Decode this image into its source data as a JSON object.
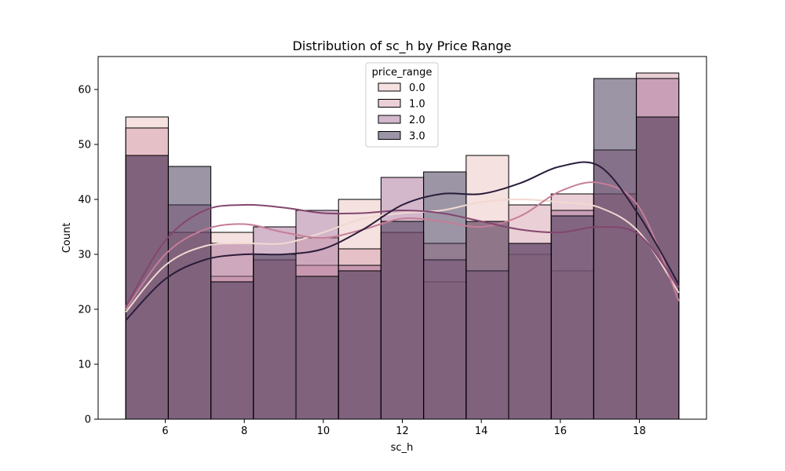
{
  "chart_data": {
    "type": "histogram",
    "title": "Distribution of sc_h by Price Range",
    "xlabel": "sc_h",
    "ylabel": "Count",
    "xlim": [
      4.3,
      19.7
    ],
    "ylim": [
      0,
      66
    ],
    "xticks": [
      6,
      8,
      10,
      12,
      14,
      16,
      18
    ],
    "yticks": [
      0,
      10,
      20,
      30,
      40,
      50,
      60
    ],
    "bin_edges": [
      5.0,
      6.0769,
      7.1538,
      8.2308,
      9.3077,
      10.3846,
      11.4615,
      12.5385,
      13.6154,
      14.6923,
      15.7692,
      16.8462,
      17.9231,
      19.0
    ],
    "legend": {
      "title": "price_range",
      "location": "upper center"
    },
    "series": [
      {
        "name": "0.0",
        "color": "#ebc4c1",
        "line_color": "#f1d9d1",
        "counts": [
          55,
          34,
          34,
          29,
          33,
          40,
          34,
          25,
          48,
          30,
          27,
          41,
          55
        ],
        "kde_x": [
          5,
          6,
          7,
          8,
          9,
          10,
          11,
          12,
          13,
          14,
          15,
          16,
          17,
          18,
          19
        ],
        "kde_y": [
          19.5,
          28,
          31.5,
          32,
          32,
          34,
          36.5,
          37.5,
          38,
          39.5,
          40,
          39.5,
          38.5,
          34,
          23
        ]
      },
      {
        "name": "1.0",
        "color": "#d8a0ad",
        "line_color": "#c67d98",
        "counts": [
          53,
          34,
          26,
          29,
          28,
          31,
          34,
          32,
          36,
          39,
          41,
          41,
          63
        ],
        "kde_x": [
          5,
          6,
          7,
          8,
          9,
          10,
          11,
          12,
          13,
          14,
          15,
          16,
          17,
          18,
          19
        ],
        "kde_y": [
          20,
          30,
          34.5,
          35.5,
          34,
          33,
          34.5,
          36.5,
          36,
          35,
          37,
          41.5,
          43,
          38.5,
          21.5
        ]
      },
      {
        "name": "2.0",
        "color": "#a86f98",
        "line_color": "#83466f",
        "counts": [
          48,
          39,
          32,
          35,
          38,
          28,
          44,
          29,
          27,
          32,
          38,
          49,
          62
        ],
        "kde_x": [
          5,
          6,
          7,
          8,
          9,
          10,
          11,
          12,
          13,
          14,
          15,
          16,
          17,
          18,
          19
        ],
        "kde_y": [
          20.5,
          32.5,
          38,
          39,
          38.5,
          37.5,
          37.5,
          38,
          37.5,
          36,
          34.5,
          34,
          35,
          33.5,
          24
        ]
      },
      {
        "name": "3.0",
        "color": "#3a2b4c",
        "line_color": "#2a1d3a",
        "counts": [
          48,
          46,
          25,
          30,
          26,
          27,
          36,
          45,
          36,
          32,
          37,
          62,
          55
        ],
        "kde_x": [
          5,
          6,
          7,
          8,
          9,
          10,
          11,
          12,
          13,
          14,
          15,
          16,
          17,
          18,
          19
        ],
        "kde_y": [
          18,
          25.5,
          29,
          30,
          30,
          31,
          34.5,
          39,
          41,
          41,
          43,
          46,
          46,
          37,
          24.5
        ]
      }
    ]
  }
}
